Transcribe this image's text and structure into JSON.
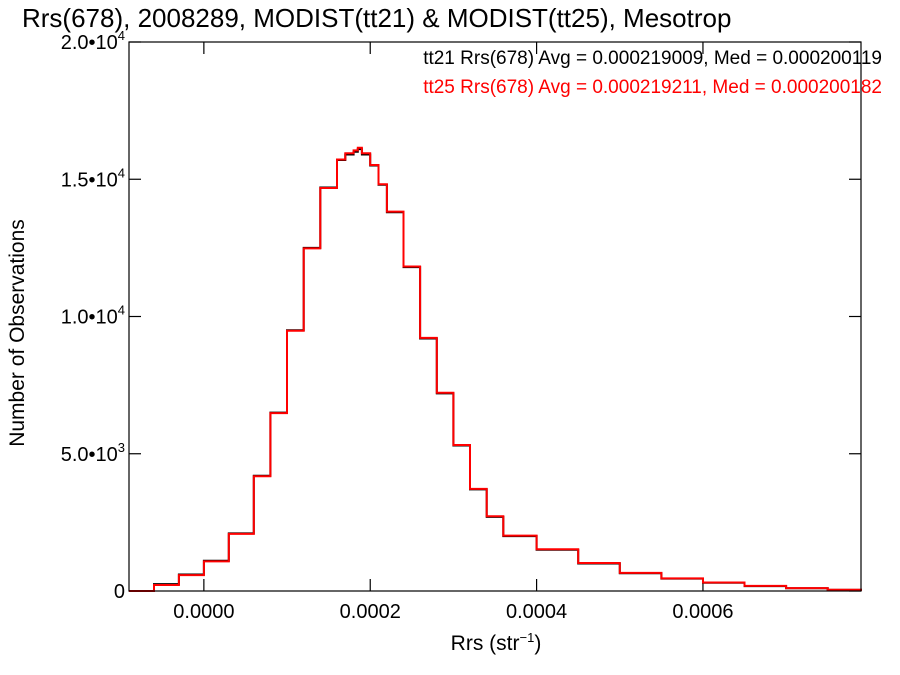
{
  "chart_data": {
    "type": "line",
    "title": "Rrs(678), 2008289, MODIST(tt21) & MODIST(tt25), Mesotrop",
    "xlabel": "Rrs (str",
    "xlabel_unit_exponent": "−1",
    "xlabel_close": ")",
    "ylabel": "Number of Observations",
    "xlim": [
      -9e-05,
      0.00079
    ],
    "ylim": [
      0,
      20000
    ],
    "x_ticks": [
      {
        "value": 0.0,
        "label": "0.0000"
      },
      {
        "value": 0.0002,
        "label": "0.0002"
      },
      {
        "value": 0.0004,
        "label": "0.0004"
      },
      {
        "value": 0.0006,
        "label": "0.0006"
      }
    ],
    "y_ticks": [
      {
        "value": 0,
        "label": "0",
        "exp": ""
      },
      {
        "value": 5000,
        "label": "5.0•10",
        "exp": "3"
      },
      {
        "value": 10000,
        "label": "1.0•10",
        "exp": "4"
      },
      {
        "value": 15000,
        "label": "1.5•10",
        "exp": "4"
      },
      {
        "value": 20000,
        "label": "2.0•10",
        "exp": "4"
      }
    ],
    "annotations": [
      "tt21 Rrs(678) Avg = 0.000219009, Med = 0.000200119",
      "tt25 Rrs(678) Avg = 0.000219211, Med = 0.000200182"
    ],
    "grid": false,
    "series": [
      {
        "name": "tt21",
        "color": "#000000",
        "x": [
          -9e-05,
          -6e-05,
          -3e-05,
          0.0,
          3e-05,
          6e-05,
          8e-05,
          0.0001,
          0.00012,
          0.00014,
          0.00016,
          0.00017,
          0.00018,
          0.000185,
          0.00019,
          0.0002,
          0.00021,
          0.00022,
          0.00024,
          0.00026,
          0.00028,
          0.0003,
          0.00032,
          0.00034,
          0.00036,
          0.0004,
          0.00045,
          0.0005,
          0.00055,
          0.0006,
          0.00065,
          0.0007,
          0.00075,
          0.00079
        ],
        "y": [
          0,
          250,
          600,
          1100,
          2100,
          4200,
          6500,
          9500,
          12500,
          14700,
          15700,
          15900,
          16000,
          16100,
          15900,
          15500,
          14800,
          13800,
          11800,
          9200,
          7200,
          5300,
          3700,
          2700,
          2000,
          1500,
          1000,
          650,
          450,
          300,
          180,
          100,
          40,
          10
        ]
      },
      {
        "name": "tt25",
        "color": "#ff0000",
        "x": [
          -9e-05,
          -6e-05,
          -3e-05,
          0.0,
          3e-05,
          6e-05,
          8e-05,
          0.0001,
          0.00012,
          0.00014,
          0.00016,
          0.00017,
          0.00018,
          0.000185,
          0.00019,
          0.0002,
          0.00021,
          0.00022,
          0.00024,
          0.00026,
          0.00028,
          0.0003,
          0.00032,
          0.00034,
          0.00036,
          0.0004,
          0.00045,
          0.0005,
          0.00055,
          0.0006,
          0.00065,
          0.0007,
          0.00075,
          0.00079
        ],
        "y": [
          0,
          220,
          580,
          1080,
          2080,
          4180,
          6480,
          9480,
          12480,
          14680,
          15720,
          15950,
          16050,
          16150,
          15950,
          15520,
          14820,
          13820,
          11820,
          9220,
          7220,
          5320,
          3720,
          2720,
          2020,
          1520,
          1020,
          660,
          460,
          310,
          185,
          105,
          45,
          12
        ]
      }
    ]
  }
}
